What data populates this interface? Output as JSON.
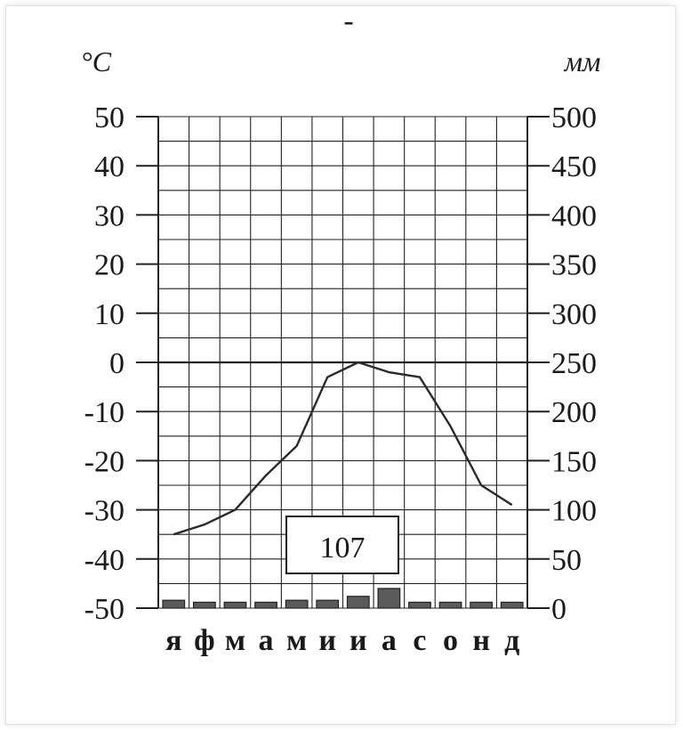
{
  "chart_data": {
    "type": "climate-diagram",
    "title": "-",
    "y_left": {
      "unit": "°C",
      "ticks": [
        50,
        40,
        30,
        20,
        10,
        0,
        -10,
        -20,
        -30,
        -40,
        -50
      ],
      "range": [
        -50,
        50
      ]
    },
    "y_right": {
      "unit": "мм",
      "ticks": [
        500,
        450,
        400,
        350,
        300,
        250,
        200,
        150,
        100,
        50,
        0
      ],
      "range": [
        0,
        500
      ]
    },
    "months": [
      "я",
      "ф",
      "м",
      "а",
      "м",
      "и",
      "и",
      "а",
      "с",
      "о",
      "н",
      "д"
    ],
    "temperature": [
      -35,
      -33,
      -30,
      -23,
      -17,
      -3,
      0,
      -2,
      -3,
      -13,
      -25,
      -29
    ],
    "precipitation": [
      8,
      6,
      6,
      6,
      8,
      8,
      12,
      20,
      6,
      6,
      6,
      6
    ],
    "annual_precipitation": "107",
    "grid": true
  }
}
